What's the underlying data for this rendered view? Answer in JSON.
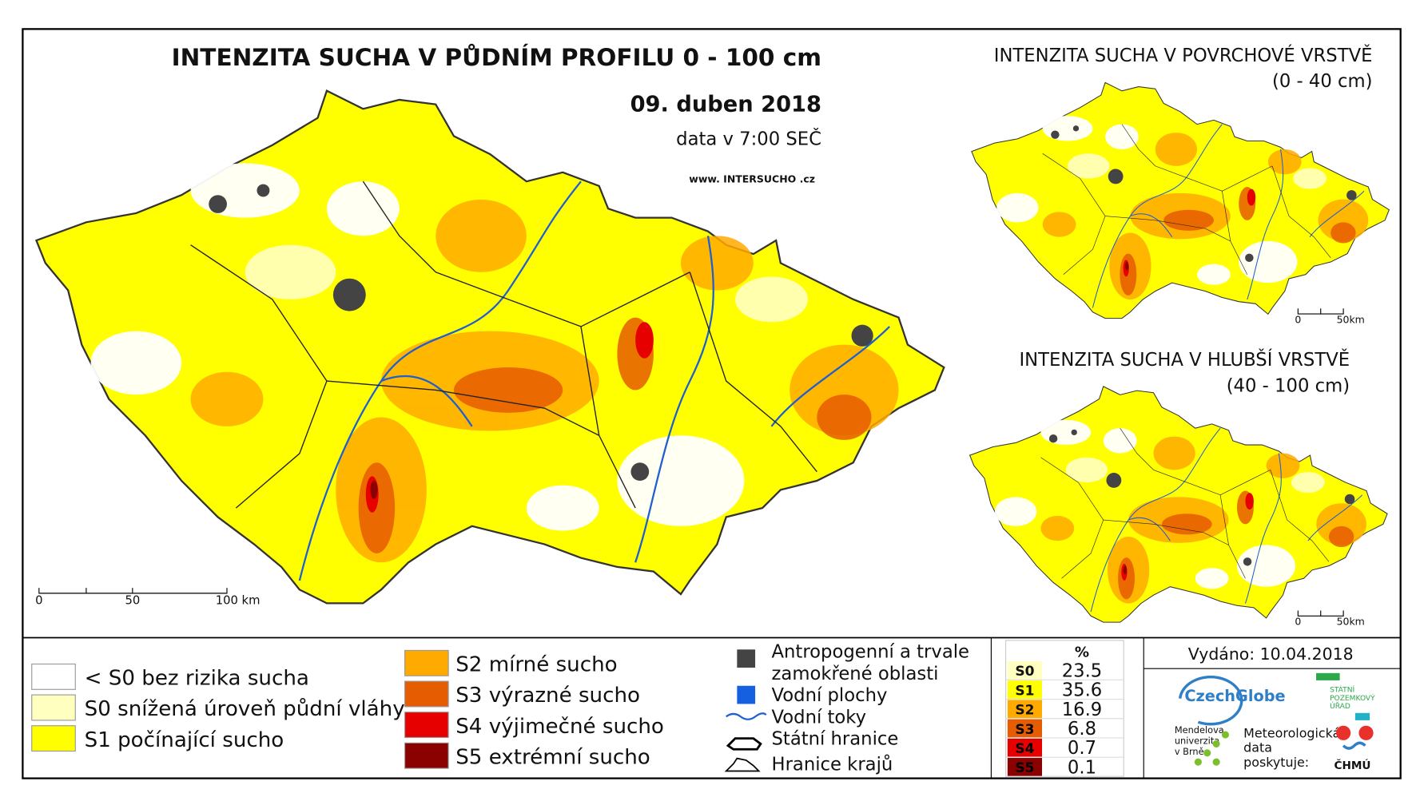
{
  "main_map": {
    "title": "INTENZITA SUCHA V PŮDNÍM PROFILU 0 - 100 cm",
    "date": "09. duben 2018",
    "data_time": "data v 7:00 SEČ",
    "website": "www. INTERSUCHO .cz",
    "scale": [
      "0",
      "50",
      "100 km"
    ]
  },
  "inset_top": {
    "title": "INTENZITA SUCHA V POVRCHOVÉ VRSTVĚ",
    "subtitle": "(0 - 40 cm)",
    "scale": [
      "0",
      "50km"
    ]
  },
  "inset_bottom": {
    "title": "INTENZITA SUCHA V HLUBŠÍ VRSTVĚ",
    "subtitle": "(40 - 100 cm)",
    "scale": [
      "0",
      "50km"
    ]
  },
  "legend": {
    "classes": [
      {
        "label": "< S0 bez rizika sucha",
        "color": "#ffffff"
      },
      {
        "label": "S0 snížená úroveň půdní vláhy",
        "color": "#ffffc0"
      },
      {
        "label": "S1 počínající sucho",
        "color": "#ffff00"
      },
      {
        "label": "S2 mírné sucho",
        "color": "#ffaa00"
      },
      {
        "label": "S3 výrazné sucho",
        "color": "#e65c00"
      },
      {
        "label": "S4 výjimečné sucho",
        "color": "#e60000"
      },
      {
        "label": "S5 extrémní sucho",
        "color": "#8b0000"
      }
    ],
    "other": [
      "Antropogenní a trvale",
      "zamokřené oblasti",
      "Vodní plochy",
      "Vodní toky",
      "Státní hranice",
      "Hranice krajů"
    ]
  },
  "table": {
    "header": "%",
    "rows": [
      [
        "S0",
        23.5
      ],
      [
        "S1",
        35.6
      ],
      [
        "S2",
        16.9
      ],
      [
        "S3",
        6.8
      ],
      [
        "S4",
        0.7
      ],
      [
        "S5",
        0.1
      ]
    ]
  },
  "issued": "Vydáno: 10.04.2018",
  "logos": {
    "czechglobe": "CzechGlobe",
    "spu": [
      "STÁTNÍ",
      "POZEMKOVÝ",
      "ÚŘAD"
    ],
    "mendelu": [
      "Mendelova",
      "univerzita",
      "v Brně"
    ],
    "meteo": [
      "Meteorologická",
      "data",
      "poskytuje:"
    ],
    "chmu": "ČHMÚ"
  }
}
